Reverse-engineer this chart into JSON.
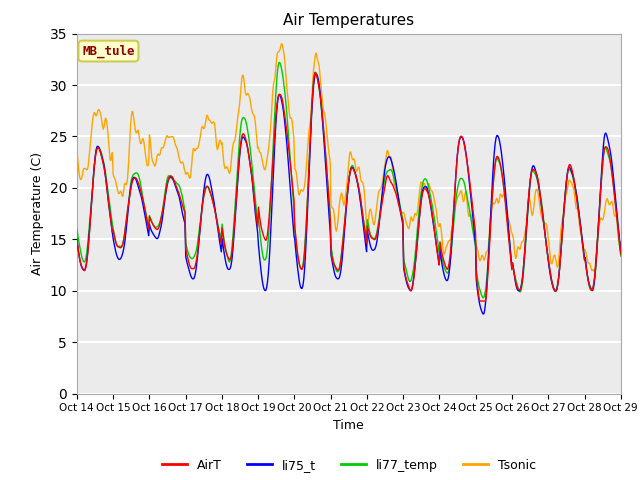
{
  "title": "Air Temperatures",
  "xlabel": "Time",
  "ylabel": "Air Temperature (C)",
  "ylim": [
    0,
    35
  ],
  "yticks": [
    0,
    5,
    10,
    15,
    20,
    25,
    30,
    35
  ],
  "x_labels": [
    "Oct 14",
    "Oct 15",
    "Oct 16",
    "Oct 17",
    "Oct 18",
    "Oct 19",
    "Oct 20",
    "Oct 21",
    "Oct 22",
    "Oct 23",
    "Oct 24",
    "Oct 25",
    "Oct 26",
    "Oct 27",
    "Oct 28",
    "Oct 29"
  ],
  "annotation_text": "MB_tule",
  "annotation_color": "#8B0000",
  "annotation_bg": "#FFFFCC",
  "series_colors": {
    "AirT": "#FF0000",
    "li75_t": "#0000FF",
    "li77_temp": "#00CC00",
    "Tsonic": "#FFA500"
  },
  "plot_bg": "#EBEBEB",
  "linewidth": 1.0
}
